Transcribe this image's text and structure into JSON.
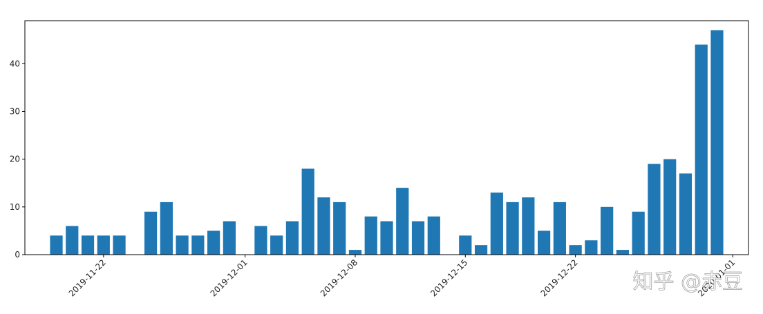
{
  "chart_data": {
    "type": "bar",
    "x": [
      "2019-11-19",
      "2019-11-20",
      "2019-11-21",
      "2019-11-22",
      "2019-11-23",
      "2019-11-25",
      "2019-11-26",
      "2019-11-27",
      "2019-11-28",
      "2019-11-29",
      "2019-11-30",
      "2019-12-02",
      "2019-12-03",
      "2019-12-04",
      "2019-12-05",
      "2019-12-06",
      "2019-12-07",
      "2019-12-08",
      "2019-12-09",
      "2019-12-10",
      "2019-12-11",
      "2019-12-12",
      "2019-12-13",
      "2019-12-15",
      "2019-12-16",
      "2019-12-17",
      "2019-12-18",
      "2019-12-19",
      "2019-12-20",
      "2019-12-21",
      "2019-12-22",
      "2019-12-23",
      "2019-12-24",
      "2019-12-25",
      "2019-12-26",
      "2019-12-27",
      "2019-12-28",
      "2019-12-29",
      "2019-12-30",
      "2019-12-31"
    ],
    "values": [
      4,
      6,
      4,
      4,
      4,
      9,
      11,
      4,
      4,
      5,
      7,
      6,
      4,
      7,
      18,
      12,
      11,
      1,
      8,
      7,
      14,
      7,
      8,
      4,
      2,
      13,
      11,
      12,
      5,
      11,
      2,
      3,
      10,
      1,
      9,
      19,
      20,
      17,
      44,
      47
    ],
    "color": "#1f77b4",
    "xlim": [
      "2019-11-17",
      "2020-01-02"
    ],
    "xticks": [
      "2019-11-22",
      "2019-12-01",
      "2019-12-08",
      "2019-12-15",
      "2019-12-22",
      "2020-01-01"
    ],
    "ylim": [
      0,
      49
    ],
    "yticks": [
      0,
      10,
      20,
      30,
      40
    ],
    "watermark": "知乎 @赤豆"
  }
}
